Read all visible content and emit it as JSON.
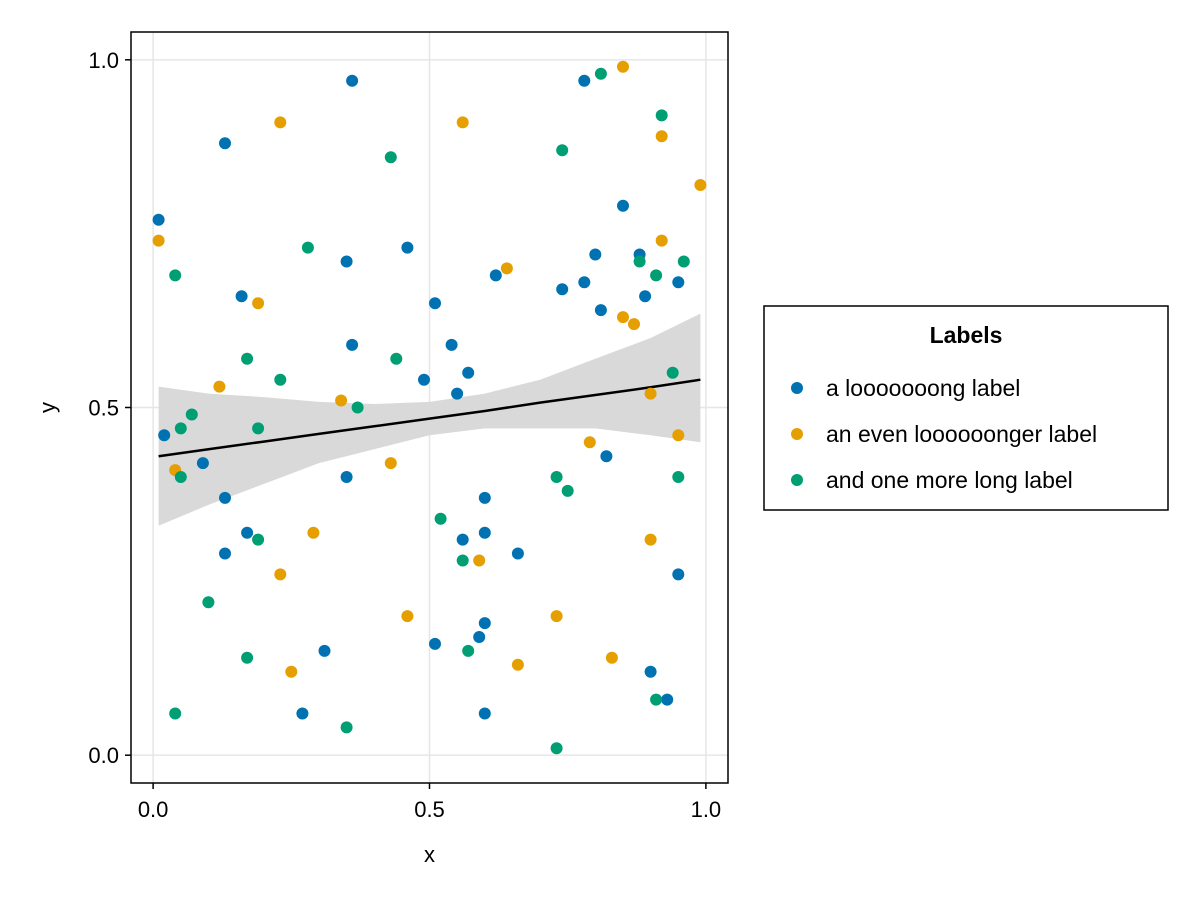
{
  "chart_data": {
    "type": "scatter",
    "title": "",
    "xlabel": "x",
    "ylabel": "y",
    "xlim": [
      -0.04,
      1.04
    ],
    "ylim": [
      -0.04,
      1.04
    ],
    "x_ticks": [
      0.0,
      0.5,
      1.0
    ],
    "x_tick_labels": [
      "0.0",
      "0.5",
      "1.0"
    ],
    "y_ticks": [
      0.0,
      0.5,
      1.0
    ],
    "y_tick_labels": [
      "0.0",
      "0.5",
      "1.0"
    ],
    "grid": true,
    "legend": {
      "title": "Labels",
      "placement": "right"
    },
    "series": [
      {
        "name": "a looooooong label",
        "color": "#0072b2",
        "points": [
          [
            0.01,
            0.77
          ],
          [
            0.02,
            0.46
          ],
          [
            0.09,
            0.42
          ],
          [
            0.13,
            0.88
          ],
          [
            0.13,
            0.37
          ],
          [
            0.13,
            0.29
          ],
          [
            0.16,
            0.66
          ],
          [
            0.17,
            0.32
          ],
          [
            0.27,
            0.06
          ],
          [
            0.31,
            0.15
          ],
          [
            0.35,
            0.4
          ],
          [
            0.35,
            0.71
          ],
          [
            0.36,
            0.97
          ],
          [
            0.36,
            0.59
          ],
          [
            0.46,
            0.73
          ],
          [
            0.49,
            0.54
          ],
          [
            0.51,
            0.65
          ],
          [
            0.51,
            0.16
          ],
          [
            0.54,
            0.59
          ],
          [
            0.55,
            0.52
          ],
          [
            0.56,
            0.31
          ],
          [
            0.57,
            0.55
          ],
          [
            0.59,
            0.17
          ],
          [
            0.6,
            0.37
          ],
          [
            0.6,
            0.32
          ],
          [
            0.6,
            0.06
          ],
          [
            0.6,
            0.19
          ],
          [
            0.62,
            0.69
          ],
          [
            0.66,
            0.29
          ],
          [
            0.74,
            0.67
          ],
          [
            0.78,
            0.97
          ],
          [
            0.78,
            0.68
          ],
          [
            0.8,
            0.72
          ],
          [
            0.81,
            0.64
          ],
          [
            0.82,
            0.43
          ],
          [
            0.85,
            0.79
          ],
          [
            0.88,
            0.72
          ],
          [
            0.89,
            0.66
          ],
          [
            0.9,
            0.12
          ],
          [
            0.93,
            0.08
          ],
          [
            0.95,
            0.26
          ],
          [
            0.95,
            0.68
          ]
        ]
      },
      {
        "name": "an even loooooonger label",
        "color": "#e69f00",
        "points": [
          [
            0.01,
            0.74
          ],
          [
            0.04,
            0.41
          ],
          [
            0.12,
            0.53
          ],
          [
            0.19,
            0.65
          ],
          [
            0.23,
            0.91
          ],
          [
            0.23,
            0.26
          ],
          [
            0.25,
            0.12
          ],
          [
            0.29,
            0.32
          ],
          [
            0.34,
            0.51
          ],
          [
            0.43,
            0.42
          ],
          [
            0.46,
            0.2
          ],
          [
            0.56,
            0.91
          ],
          [
            0.59,
            0.28
          ],
          [
            0.64,
            0.7
          ],
          [
            0.66,
            0.13
          ],
          [
            0.73,
            0.2
          ],
          [
            0.79,
            0.45
          ],
          [
            0.83,
            0.14
          ],
          [
            0.85,
            0.99
          ],
          [
            0.85,
            0.63
          ],
          [
            0.87,
            0.62
          ],
          [
            0.9,
            0.52
          ],
          [
            0.9,
            0.31
          ],
          [
            0.92,
            0.89
          ],
          [
            0.92,
            0.74
          ],
          [
            0.95,
            0.46
          ],
          [
            0.99,
            0.82
          ]
        ]
      },
      {
        "name": "and one more long label",
        "color": "#009e73",
        "points": [
          [
            0.04,
            0.69
          ],
          [
            0.04,
            0.06
          ],
          [
            0.05,
            0.47
          ],
          [
            0.05,
            0.4
          ],
          [
            0.07,
            0.49
          ],
          [
            0.1,
            0.22
          ],
          [
            0.17,
            0.57
          ],
          [
            0.17,
            0.14
          ],
          [
            0.19,
            0.31
          ],
          [
            0.19,
            0.47
          ],
          [
            0.23,
            0.54
          ],
          [
            0.28,
            0.73
          ],
          [
            0.35,
            0.04
          ],
          [
            0.37,
            0.5
          ],
          [
            0.43,
            0.86
          ],
          [
            0.44,
            0.57
          ],
          [
            0.52,
            0.34
          ],
          [
            0.56,
            0.28
          ],
          [
            0.57,
            0.15
          ],
          [
            0.73,
            0.4
          ],
          [
            0.73,
            0.01
          ],
          [
            0.74,
            0.87
          ],
          [
            0.75,
            0.38
          ],
          [
            0.81,
            0.98
          ],
          [
            0.88,
            0.71
          ],
          [
            0.91,
            0.69
          ],
          [
            0.91,
            0.08
          ],
          [
            0.92,
            0.92
          ],
          [
            0.94,
            0.55
          ],
          [
            0.95,
            0.4
          ],
          [
            0.96,
            0.71
          ]
        ]
      }
    ],
    "fit": {
      "line_color": "#000000",
      "band_color": "#d9d9d9",
      "x": [
        0.01,
        0.1,
        0.2,
        0.3,
        0.4,
        0.5,
        0.6,
        0.7,
        0.8,
        0.9,
        0.99
      ],
      "y": [
        0.43,
        0.44,
        0.451,
        0.462,
        0.473,
        0.484,
        0.495,
        0.507,
        0.518,
        0.529,
        0.54
      ],
      "lower": [
        0.33,
        0.36,
        0.39,
        0.42,
        0.44,
        0.46,
        0.47,
        0.47,
        0.47,
        0.46,
        0.45
      ],
      "upper": [
        0.53,
        0.52,
        0.515,
        0.508,
        0.505,
        0.508,
        0.52,
        0.54,
        0.57,
        0.6,
        0.635
      ]
    }
  }
}
